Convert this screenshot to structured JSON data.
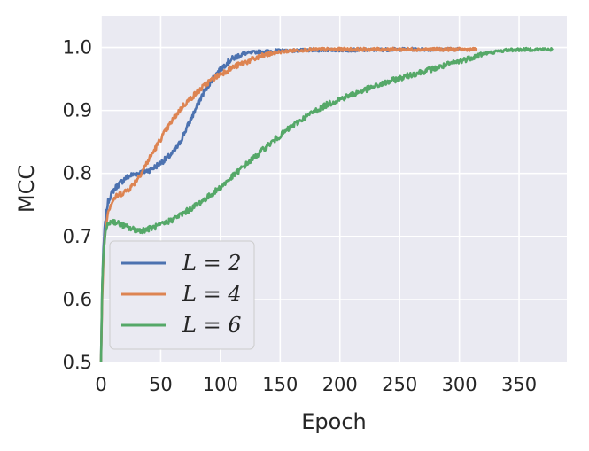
{
  "chart_data": {
    "type": "line",
    "xlabel": "Epoch",
    "ylabel": "MCC",
    "xlim": [
      0,
      390
    ],
    "ylim": [
      0.5,
      1.05
    ],
    "xticks": [
      0,
      50,
      100,
      150,
      200,
      250,
      300,
      350
    ],
    "yticks": [
      0.5,
      0.6,
      0.7,
      0.8,
      0.9,
      1.0
    ],
    "ytick_labels": [
      "0.5",
      "0.6",
      "0.7",
      "0.8",
      "0.9",
      "1.0"
    ],
    "grid": true,
    "legend_position": "bottom-left",
    "series": [
      {
        "name": "L = 2",
        "color": "#4c72b0",
        "x": [
          0,
          1,
          2,
          3,
          4,
          5,
          6,
          8,
          10,
          12,
          15,
          18,
          20,
          25,
          30,
          35,
          40,
          45,
          50,
          55,
          60,
          65,
          70,
          75,
          80,
          85,
          90,
          95,
          100,
          105,
          110,
          115,
          120,
          130,
          140,
          150,
          160,
          180,
          200,
          220,
          250,
          280,
          300
        ],
        "y": [
          0.5,
          0.62,
          0.68,
          0.71,
          0.73,
          0.745,
          0.755,
          0.765,
          0.772,
          0.777,
          0.783,
          0.788,
          0.792,
          0.797,
          0.8,
          0.802,
          0.805,
          0.81,
          0.817,
          0.824,
          0.832,
          0.845,
          0.865,
          0.885,
          0.905,
          0.925,
          0.94,
          0.955,
          0.965,
          0.975,
          0.982,
          0.987,
          0.99,
          0.993,
          0.994,
          0.995,
          0.995,
          0.996,
          0.996,
          0.996,
          0.997,
          0.997,
          0.997
        ]
      },
      {
        "name": "L = 4",
        "color": "#dd8452",
        "x": [
          0,
          1,
          2,
          3,
          4,
          5,
          6,
          8,
          10,
          12,
          15,
          20,
          25,
          30,
          35,
          40,
          45,
          50,
          55,
          60,
          65,
          70,
          80,
          90,
          100,
          110,
          120,
          130,
          140,
          150,
          160,
          170,
          180,
          200,
          220,
          250,
          280,
          300,
          315
        ],
        "y": [
          0.5,
          0.6,
          0.66,
          0.695,
          0.715,
          0.73,
          0.74,
          0.75,
          0.757,
          0.762,
          0.766,
          0.771,
          0.778,
          0.79,
          0.805,
          0.822,
          0.838,
          0.855,
          0.87,
          0.885,
          0.898,
          0.91,
          0.928,
          0.945,
          0.958,
          0.968,
          0.976,
          0.983,
          0.989,
          0.993,
          0.995,
          0.996,
          0.997,
          0.997,
          0.997,
          0.997,
          0.997,
          0.997,
          0.997
        ]
      },
      {
        "name": "L = 6",
        "color": "#55a868",
        "x": [
          0,
          1,
          2,
          3,
          4,
          5,
          6,
          8,
          10,
          12,
          15,
          20,
          25,
          30,
          35,
          40,
          50,
          60,
          70,
          80,
          90,
          100,
          110,
          120,
          130,
          140,
          150,
          160,
          170,
          180,
          190,
          200,
          220,
          240,
          260,
          280,
          300,
          320,
          340,
          360,
          378
        ],
        "y": [
          0.5,
          0.62,
          0.67,
          0.695,
          0.708,
          0.715,
          0.72,
          0.723,
          0.724,
          0.723,
          0.72,
          0.716,
          0.712,
          0.71,
          0.71,
          0.712,
          0.718,
          0.727,
          0.738,
          0.75,
          0.763,
          0.778,
          0.795,
          0.812,
          0.828,
          0.845,
          0.86,
          0.875,
          0.888,
          0.9,
          0.91,
          0.918,
          0.932,
          0.945,
          0.957,
          0.967,
          0.978,
          0.99,
          0.996,
          0.997,
          0.997
        ]
      }
    ]
  }
}
